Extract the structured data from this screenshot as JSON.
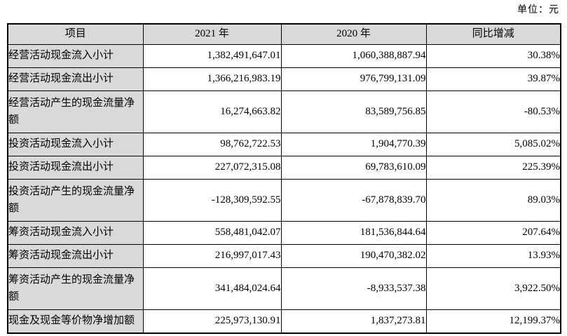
{
  "unit_label": "单位：元",
  "table": {
    "headers": {
      "item": "项目",
      "year2021": "2021 年",
      "year2020": "2020 年",
      "yoy": "同比增减"
    },
    "rows": [
      {
        "item": "经营活动现金流入小计",
        "y2021": "1,382,491,647.01",
        "y2020": "1,060,388,887.94",
        "yoy": "30.38%",
        "tall": false
      },
      {
        "item": "经营活动现金流出小计",
        "y2021": "1,366,216,983.19",
        "y2020": "976,799,131.09",
        "yoy": "39.87%",
        "tall": false
      },
      {
        "item": "经营活动产生的现金流量净额",
        "y2021": "16,274,663.82",
        "y2020": "83,589,756.85",
        "yoy": "-80.53%",
        "tall": true
      },
      {
        "item": "投资活动现金流入小计",
        "y2021": "98,762,722.53",
        "y2020": "1,904,770.39",
        "yoy": "5,085.02%",
        "tall": false
      },
      {
        "item": "投资活动现金流出小计",
        "y2021": "227,072,315.08",
        "y2020": "69,783,610.09",
        "yoy": "225.39%",
        "tall": false
      },
      {
        "item": "投资活动产生的现金流量净额",
        "y2021": "-128,309,592.55",
        "y2020": "-67,878,839.70",
        "yoy": "89.03%",
        "tall": true
      },
      {
        "item": "筹资活动现金流入小计",
        "y2021": "558,481,042.07",
        "y2020": "181,536,844.64",
        "yoy": "207.64%",
        "tall": false
      },
      {
        "item": "筹资活动现金流出小计",
        "y2021": "216,997,017.43",
        "y2020": "190,470,382.02",
        "yoy": "13.93%",
        "tall": false
      },
      {
        "item": "筹资活动产生的现金流量净额",
        "y2021": "341,484,024.64",
        "y2020": "-8,933,537.38",
        "yoy": "3,922.50%",
        "tall": true
      },
      {
        "item": "现金及现金等价物净增加额",
        "y2021": "225,973,130.91",
        "y2020": "1,837,273.81",
        "yoy": "12,199.37%",
        "tall": false
      }
    ]
  },
  "colors": {
    "header_bg": "#d9d9d9",
    "item_column_bg": "#d9d9d9",
    "cell_bg": "#ffffff",
    "border": "#000000",
    "text": "#000000"
  }
}
